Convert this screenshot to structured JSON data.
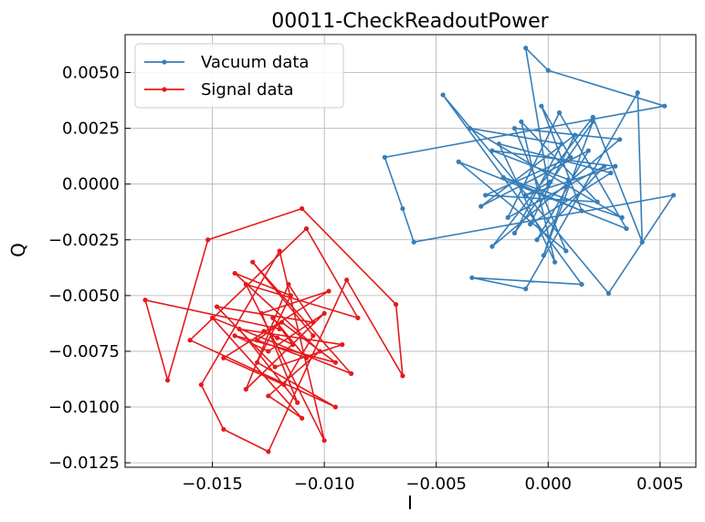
{
  "chart_data": {
    "type": "scatter",
    "title": "00011-CheckReadoutPower",
    "xlabel": "I",
    "ylabel": "Q",
    "xlim": [
      -0.0189,
      0.0066
    ],
    "ylim": [
      -0.0127,
      0.0067
    ],
    "grid": true,
    "legend_position": "top-left",
    "x_ticks": [
      -0.015,
      -0.01,
      -0.005,
      0.0,
      0.005
    ],
    "x_tick_labels": [
      "−0.015",
      "−0.010",
      "−0.005",
      "0.000",
      "0.005"
    ],
    "y_ticks": [
      0.005,
      0.0025,
      0.0,
      -0.0025,
      -0.005,
      -0.0075,
      -0.01,
      -0.0125
    ],
    "y_tick_labels": [
      "0.0050",
      "0.0025",
      "0.0000",
      "−0.0025",
      "−0.0050",
      "−0.0075",
      "−0.0100",
      "−0.0125"
    ],
    "series": [
      {
        "name": "Vacuum data",
        "color": "#377eb8",
        "x": [
          0.0,
          -0.001,
          0.0,
          0.0052,
          -0.0073,
          -0.0065,
          -0.006,
          0.0056,
          0.0027,
          -0.0047,
          0.0015,
          -0.0034,
          -0.001,
          0.004,
          0.0042,
          0.002,
          -0.0025,
          0.0032,
          -0.0015,
          0.0008,
          -0.004,
          0.0035,
          0.0005,
          -0.0018,
          0.0025,
          -0.0005,
          0.0018,
          -0.003,
          0.0012,
          -0.0008,
          0.0028,
          -0.0022,
          0.0003,
          -0.0012,
          0.0022,
          -0.0028,
          0.001,
          -0.0003,
          0.0015,
          -0.002,
          0.0033,
          -0.0035,
          0.0006,
          -0.0015,
          0.002,
          -0.0002,
          0.0009,
          -0.0025,
          0.003,
          -0.001,
          0.0001
        ],
        "y": [
          0.0,
          0.0061,
          0.0051,
          0.0035,
          0.0012,
          -0.0011,
          -0.0026,
          -0.0005,
          -0.0049,
          0.004,
          -0.0045,
          -0.0042,
          -0.0047,
          0.0041,
          -0.0026,
          0.003,
          -0.0028,
          0.002,
          0.0025,
          -0.003,
          0.001,
          -0.002,
          0.0032,
          -0.0015,
          0.0008,
          -0.0025,
          0.0015,
          -0.001,
          0.0022,
          -0.0018,
          0.0005,
          0.0018,
          -0.0035,
          0.0028,
          -0.0008,
          -0.0005,
          0.0012,
          0.0035,
          -0.0012,
          0.0003,
          -0.0015,
          0.0025,
          0.0018,
          -0.0022,
          0.0028,
          -0.0032,
          0.0002,
          0.0015,
          0.0008,
          -0.0005,
          0.0001
        ]
      },
      {
        "name": "Signal data",
        "color": "#e41a1c",
        "x": [
          -0.012,
          -0.018,
          -0.017,
          -0.0152,
          -0.011,
          -0.0068,
          -0.0065,
          -0.009,
          -0.0125,
          -0.0145,
          -0.0155,
          -0.012,
          -0.01,
          -0.0135,
          -0.0085,
          -0.0108,
          -0.016,
          -0.0095,
          -0.013,
          -0.0115,
          -0.014,
          -0.0102,
          -0.0125,
          -0.011,
          -0.015,
          -0.0088,
          -0.0132,
          -0.0105,
          -0.0118,
          -0.0145,
          -0.0098,
          -0.0128,
          -0.0112,
          -0.0138,
          -0.0092,
          -0.0122,
          -0.0148,
          -0.0105,
          -0.0116,
          -0.0135,
          -0.01,
          -0.0125,
          -0.014,
          -0.0095,
          -0.0119,
          -0.013,
          -0.0108,
          -0.0123,
          -0.0114,
          -0.0127,
          -0.0121
        ],
        "y": [
          -0.0065,
          -0.0052,
          -0.0088,
          -0.0025,
          -0.0011,
          -0.0054,
          -0.0086,
          -0.0043,
          -0.012,
          -0.011,
          -0.009,
          -0.003,
          -0.0115,
          -0.0045,
          -0.006,
          -0.002,
          -0.007,
          -0.01,
          -0.008,
          -0.005,
          -0.004,
          -0.0075,
          -0.0095,
          -0.0105,
          -0.006,
          -0.0085,
          -0.0035,
          -0.0068,
          -0.009,
          -0.0078,
          -0.0048,
          -0.0058,
          -0.0098,
          -0.0065,
          -0.0072,
          -0.0082,
          -0.0055,
          -0.0062,
          -0.0045,
          -0.0092,
          -0.0058,
          -0.0075,
          -0.0068,
          -0.008,
          -0.0062,
          -0.007,
          -0.0078,
          -0.006,
          -0.0072,
          -0.0066,
          -0.0069
        ]
      }
    ]
  }
}
